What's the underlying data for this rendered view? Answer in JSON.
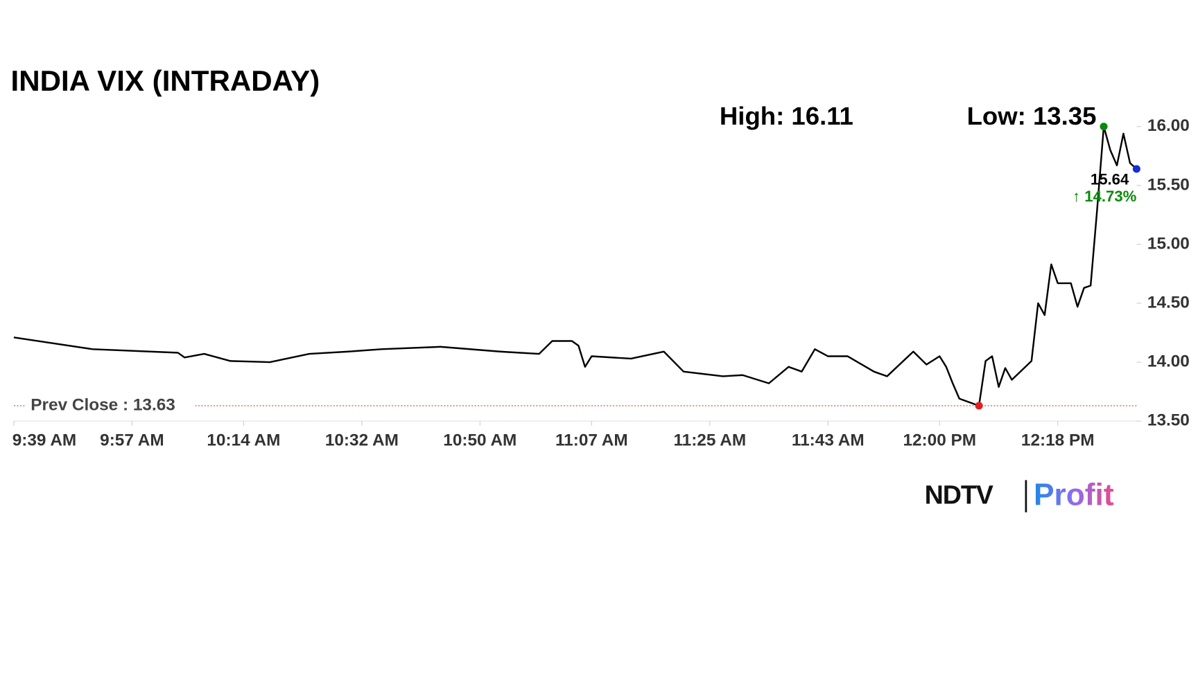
{
  "chart_data": {
    "type": "line",
    "title": "INDIA VIX (INTRADAY)",
    "annotations": [
      "High: 16.11",
      "Low: 13.35"
    ],
    "color": "#000000",
    "x": [
      579,
      591,
      604,
      605,
      608,
      612,
      618,
      624,
      630,
      635,
      644,
      653,
      659,
      661,
      664,
      665,
      666,
      667,
      673,
      678,
      681,
      687,
      690,
      694,
      697,
      699,
      701,
      703,
      706,
      710,
      712,
      716,
      718,
      720,
      721,
      722,
      723,
      726,
      727,
      728,
      729,
      730,
      731,
      734,
      735,
      736,
      737,
      738,
      740,
      741,
      742,
      743,
      744,
      745,
      746,
      747,
      748,
      749,
      750
    ],
    "values": [
      14.21,
      14.11,
      14.08,
      14.04,
      14.07,
      14.01,
      14.0,
      14.07,
      14.09,
      14.11,
      14.13,
      14.09,
      14.07,
      14.18,
      14.18,
      14.14,
      13.96,
      14.05,
      14.03,
      14.09,
      13.92,
      13.88,
      13.89,
      13.82,
      13.96,
      13.92,
      14.11,
      14.05,
      14.05,
      13.92,
      13.88,
      14.09,
      13.98,
      14.05,
      13.96,
      13.82,
      13.69,
      13.63,
      14.01,
      14.05,
      13.79,
      13.95,
      13.85,
      14.01,
      14.5,
      14.4,
      14.83,
      14.67,
      14.67,
      14.47,
      14.63,
      14.65,
      15.3,
      16.0,
      15.8,
      15.67,
      15.94,
      15.69,
      15.64
    ],
    "xlim": [
      579,
      750
    ],
    "xticks": [
      {
        "value": 579,
        "label": "9:39 AM"
      },
      {
        "value": 597,
        "label": "9:57 AM"
      },
      {
        "value": 614,
        "label": "10:14 AM"
      },
      {
        "value": 632,
        "label": "10:32 AM"
      },
      {
        "value": 650,
        "label": "10:50 AM"
      },
      {
        "value": 667,
        "label": "11:07 AM"
      },
      {
        "value": 685,
        "label": "11:25 AM"
      },
      {
        "value": 703,
        "label": "11:43 AM"
      },
      {
        "value": 720,
        "label": "12:00 PM"
      },
      {
        "value": 738,
        "label": "12:18 PM"
      }
    ],
    "ylim": [
      13.5,
      16.0
    ],
    "yticks": [
      {
        "value": 13.5,
        "label": "13.50"
      },
      {
        "value": 14,
        "label": "14.00"
      },
      {
        "value": 14.5,
        "label": "14.50"
      },
      {
        "value": 15,
        "label": "15.00"
      },
      {
        "value": 15.5,
        "label": "15.50"
      },
      {
        "value": 16,
        "label": "16.00"
      }
    ],
    "prev_close": {
      "value": 13.63,
      "label": "Prev Close : 13.63"
    },
    "last": 15.64,
    "change": {
      "value": 14.73,
      "label": "↑ 14.73%"
    },
    "logo": [
      "NDTV",
      "Profit"
    ]
  }
}
